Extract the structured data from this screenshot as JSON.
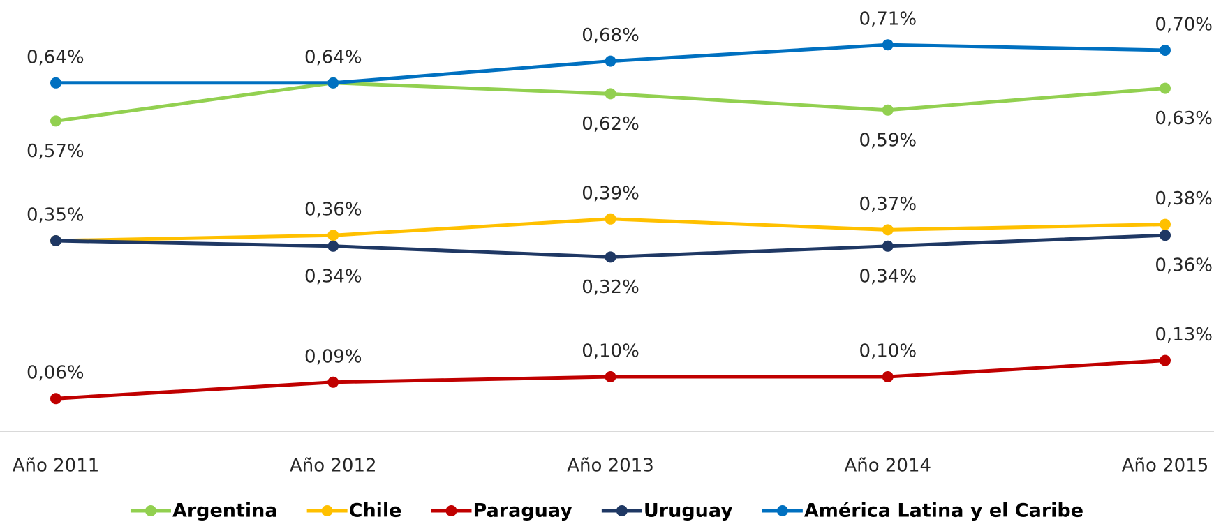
{
  "chart_data": {
    "type": "line",
    "categories": [
      "Año 2011",
      "Año 2012",
      "Año 2013",
      "Año 2014",
      "Año 2015"
    ],
    "ylim": [
      0,
      0.8
    ],
    "legend": "bottom",
    "series": [
      {
        "name": "Argentina",
        "color": "#92d050",
        "values": [
          0.57,
          0.64,
          0.62,
          0.59,
          0.63
        ],
        "value_labels": [
          "0,57%",
          null,
          "0,62%",
          "0,59%",
          "0,63%"
        ]
      },
      {
        "name": "Chile",
        "color": "#ffc000",
        "values": [
          0.35,
          0.36,
          0.39,
          0.37,
          0.38
        ],
        "value_labels": [
          "0,35%",
          "0,36%",
          "0,39%",
          "0,37%",
          "0,38%"
        ]
      },
      {
        "name": "Paraguay",
        "color": "#c00000",
        "values": [
          0.06,
          0.09,
          0.1,
          0.1,
          0.13
        ],
        "value_labels": [
          "0,06%",
          "0,09%",
          "0,10%",
          "0,10%",
          "0,13%"
        ]
      },
      {
        "name": "Uruguay",
        "color": "#1f3864",
        "values": [
          0.35,
          0.34,
          0.32,
          0.34,
          0.36
        ],
        "value_labels": [
          null,
          "0,34%",
          "0,32%",
          "0,34%",
          "0,36%"
        ]
      },
      {
        "name": "América Latina y el Caribe",
        "color": "#0070c0",
        "values": [
          0.64,
          0.64,
          0.68,
          0.71,
          0.7
        ],
        "value_labels": [
          "0,64%",
          "0,64%",
          "0,68%",
          "0,71%",
          "0,70%"
        ]
      }
    ]
  }
}
